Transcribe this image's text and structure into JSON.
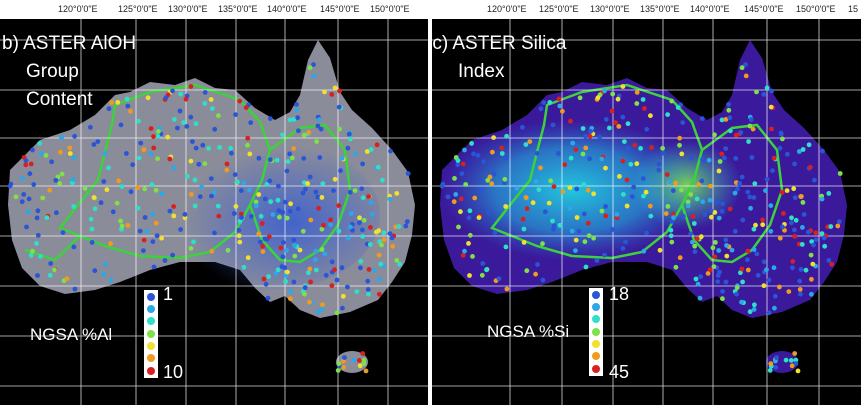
{
  "panels": [
    {
      "title_lines": [
        "b) ASTER AlOH",
        "Group",
        "Content"
      ],
      "longitudes": [
        "120°0'0\"E",
        "125°0'0\"E",
        "130°0'0\"E",
        "135°0'0\"E",
        "140°0'0\"E",
        "145°0'0\"E",
        "150°0'0\"E"
      ],
      "legend": {
        "label": "NGSA %Al",
        "min": "1",
        "max": "10"
      }
    },
    {
      "title_lines": [
        "(c)  ASTER Silica",
        "Index"
      ],
      "longitudes": [
        "120°0'0\"E",
        "125°0'0\"E",
        "130°0'0\"E",
        "135°0'0\"E",
        "140°0'0\"E",
        "145°0'0\"E",
        "150°0'0\"E",
        "15"
      ],
      "legend": {
        "label": "NGSA %Si",
        "min": "18",
        "max": "45"
      }
    }
  ],
  "legend_colors": [
    "#2a55d6",
    "#2aa8e8",
    "#2fe0c8",
    "#7fe04a",
    "#f0e030",
    "#f09a20",
    "#d82020"
  ],
  "colors": {
    "boundary": "#3cd23c",
    "grid": "#ffffff",
    "left_land": "#8a8c9a",
    "left_land_blue": "#3b5fd0",
    "right_land": "#3a1a9a",
    "right_land_cyan": "#20d0e0"
  }
}
